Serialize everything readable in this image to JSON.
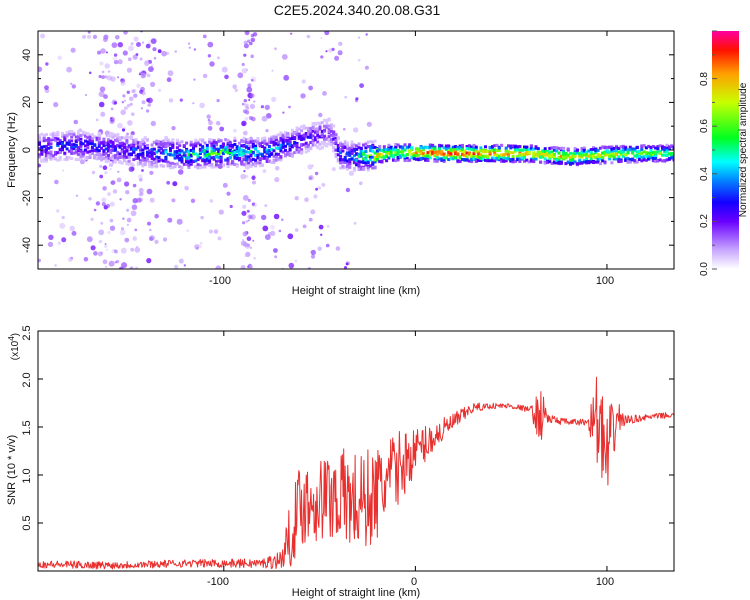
{
  "title": "C2E5.2024.340.20.08.G31",
  "chart_data": [
    {
      "type": "heatmap",
      "xlabel": "Height of straight line (km)",
      "ylabel": "Frequency (Hz)",
      "xlim": [
        -197,
        135
      ],
      "ylim": [
        -50,
        50
      ],
      "xticks": [
        -100,
        0,
        100
      ],
      "xtick_labels": [
        "-100",
        "0",
        "100"
      ],
      "yticks": [
        -40,
        -20,
        0,
        20,
        40
      ],
      "ytick_labels": [
        "-40",
        "-20",
        "0",
        "20",
        "40"
      ],
      "colorbar": {
        "label": "Normalized spectral amplitude",
        "range": [
          0,
          1
        ],
        "ticks": [
          "0.0",
          "0.2",
          "0.4",
          "0.6",
          "0.8"
        ]
      },
      "ridge": {
        "description": "dominant frequency track vs height",
        "x": [
          -197,
          -180,
          -160,
          -140,
          -120,
          -100,
          -80,
          -60,
          -45,
          -40,
          -30,
          -20,
          -10,
          0,
          20,
          40,
          60,
          80,
          100,
          120,
          135
        ],
        "freq": [
          1,
          2,
          1,
          -1,
          -2,
          -1,
          -1,
          4,
          8,
          -2,
          -3,
          -2,
          -1,
          -1,
          -1.5,
          -1.5,
          -1.5,
          -3,
          -2,
          -1.5,
          -1.5
        ],
        "amplitude": [
          0.3,
          0.35,
          0.3,
          0.35,
          0.5,
          0.6,
          0.45,
          0.3,
          0.2,
          0.35,
          0.5,
          0.85,
          0.7,
          0.95,
          1.0,
          0.95,
          0.85,
          0.8,
          0.75,
          0.7,
          0.6
        ]
      }
    },
    {
      "type": "line",
      "xlabel": "Height of straight line (km)",
      "ylabel": "SNR (10 * v/v)",
      "y_multiplier": "(x10",
      "y_exponent": "4",
      "xlim": [
        -197,
        135
      ],
      "ylim": [
        0,
        2.5
      ],
      "xticks": [
        -100,
        0,
        100
      ],
      "xtick_labels": [
        "-100",
        "0",
        "100"
      ],
      "yticks": [
        0.5,
        1.0,
        1.5,
        2.0,
        2.5
      ],
      "ytick_labels": [
        "0.5",
        "1.0",
        "1.5",
        "2.0",
        "2.5"
      ],
      "series": [
        {
          "name": "SNR",
          "color": "#e8302f",
          "x": [
            -197,
            -160,
            -120,
            -80,
            -70,
            -65,
            -60,
            -50,
            -40,
            -30,
            -20,
            -10,
            0,
            10,
            20,
            30,
            40,
            50,
            60,
            65,
            67,
            70,
            80,
            90,
            95,
            100,
            105,
            110,
            120,
            130,
            135
          ],
          "y": [
            0.07,
            0.06,
            0.08,
            0.08,
            0.12,
            0.4,
            0.7,
            0.75,
            0.8,
            0.7,
            0.8,
            1.05,
            1.25,
            1.4,
            1.55,
            1.7,
            1.72,
            1.72,
            1.68,
            1.6,
            1.65,
            1.58,
            1.55,
            1.55,
            1.6,
            1.1,
            1.6,
            1.57,
            1.6,
            1.62,
            1.62
          ],
          "noise": [
            0.04,
            0.04,
            0.04,
            0.05,
            0.1,
            0.35,
            0.45,
            0.45,
            0.5,
            0.55,
            0.5,
            0.4,
            0.25,
            0.15,
            0.1,
            0.05,
            0.03,
            0.03,
            0.03,
            0.3,
            0.2,
            0.05,
            0.03,
            0.04,
            0.5,
            0.6,
            0.2,
            0.05,
            0.03,
            0.03,
            0.03
          ]
        }
      ]
    }
  ]
}
